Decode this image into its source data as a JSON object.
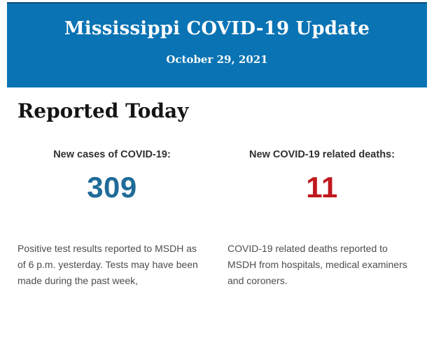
{
  "banner": {
    "title": "Mississippi COVID-19 Update",
    "date": "October 29, 2021",
    "background_color": "#0a73b4",
    "top_rule_color": "#0e4f7a"
  },
  "page": {
    "heading": "Reported Today"
  },
  "stats": [
    {
      "label": "New cases of COVID-19:",
      "value": "309",
      "value_color": "#1f6b99",
      "description": "Positive test results reported to MSDH as of 6 p.m. yesterday. Tests may have been made during the past week,"
    },
    {
      "label": "New COVID-19 related deaths:",
      "value": "11",
      "value_color": "#c1171f",
      "description": "COVID-19 related deaths reported to MSDH from hospitals, medical examiners and coroners."
    }
  ]
}
